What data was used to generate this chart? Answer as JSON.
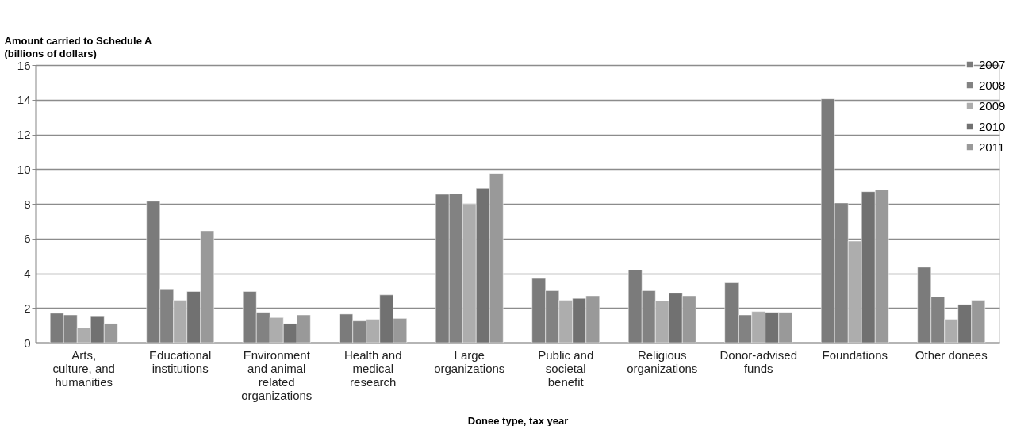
{
  "chart_data": {
    "type": "bar",
    "ylabel": "Amount carried to Schedule A (billions of dollars)",
    "xlabel": "Donee type, tax year",
    "categories": [
      "Arts, culture, and humanities",
      "Educational institutions",
      "Environment and animal related organizations",
      "Health and medical research",
      "Large organizations",
      "Public and societal benefit",
      "Religious organizations",
      "Donor-advised funds",
      "Foundations",
      "Other donees"
    ],
    "series": [
      {
        "name": "2007",
        "color": "#7b7b7b",
        "values": [
          1.7,
          8.15,
          2.95,
          1.65,
          8.55,
          3.7,
          4.2,
          3.45,
          14.05,
          4.35
        ]
      },
      {
        "name": "2008",
        "color": "#828282",
        "values": [
          1.6,
          3.1,
          1.75,
          1.25,
          8.6,
          3.0,
          3.0,
          1.6,
          8.05,
          2.65
        ]
      },
      {
        "name": "2009",
        "color": "#adadad",
        "values": [
          0.85,
          2.45,
          1.45,
          1.35,
          8.0,
          2.45,
          2.4,
          1.8,
          5.85,
          1.35
        ]
      },
      {
        "name": "2010",
        "color": "#717171",
        "values": [
          1.5,
          2.95,
          1.1,
          2.75,
          8.9,
          2.55,
          2.85,
          1.75,
          8.7,
          2.2
        ]
      },
      {
        "name": "2011",
        "color": "#999999",
        "values": [
          1.1,
          6.45,
          1.6,
          1.4,
          9.75,
          2.7,
          2.7,
          1.75,
          8.8,
          2.45
        ]
      }
    ],
    "ylim": [
      0,
      16
    ],
    "yticks": [
      0,
      2,
      4,
      6,
      8,
      10,
      12,
      14,
      16
    ],
    "grid": "y",
    "legend": "top right"
  }
}
